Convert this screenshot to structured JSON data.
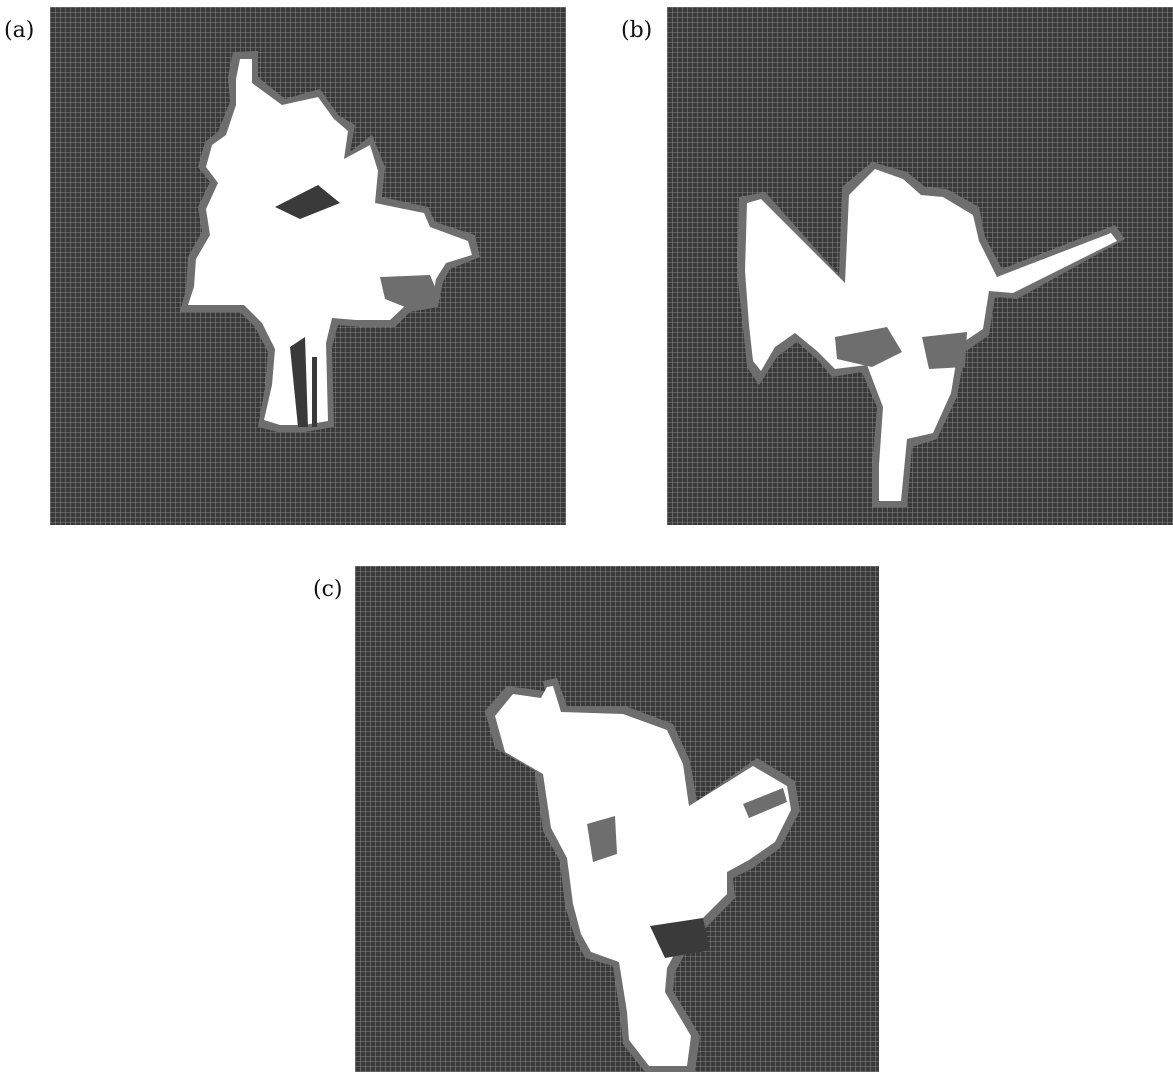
{
  "figure": {
    "panels": [
      {
        "label": "(a)"
      },
      {
        "label": "(b)"
      },
      {
        "label": "(c)"
      }
    ]
  },
  "colors": {
    "background": "#ffffff",
    "occupied_cell": "#3a3a3a",
    "grid_line": "#9a9a9a",
    "free_space": "#ffffff",
    "boundary_cell": "#6e6e6e"
  }
}
